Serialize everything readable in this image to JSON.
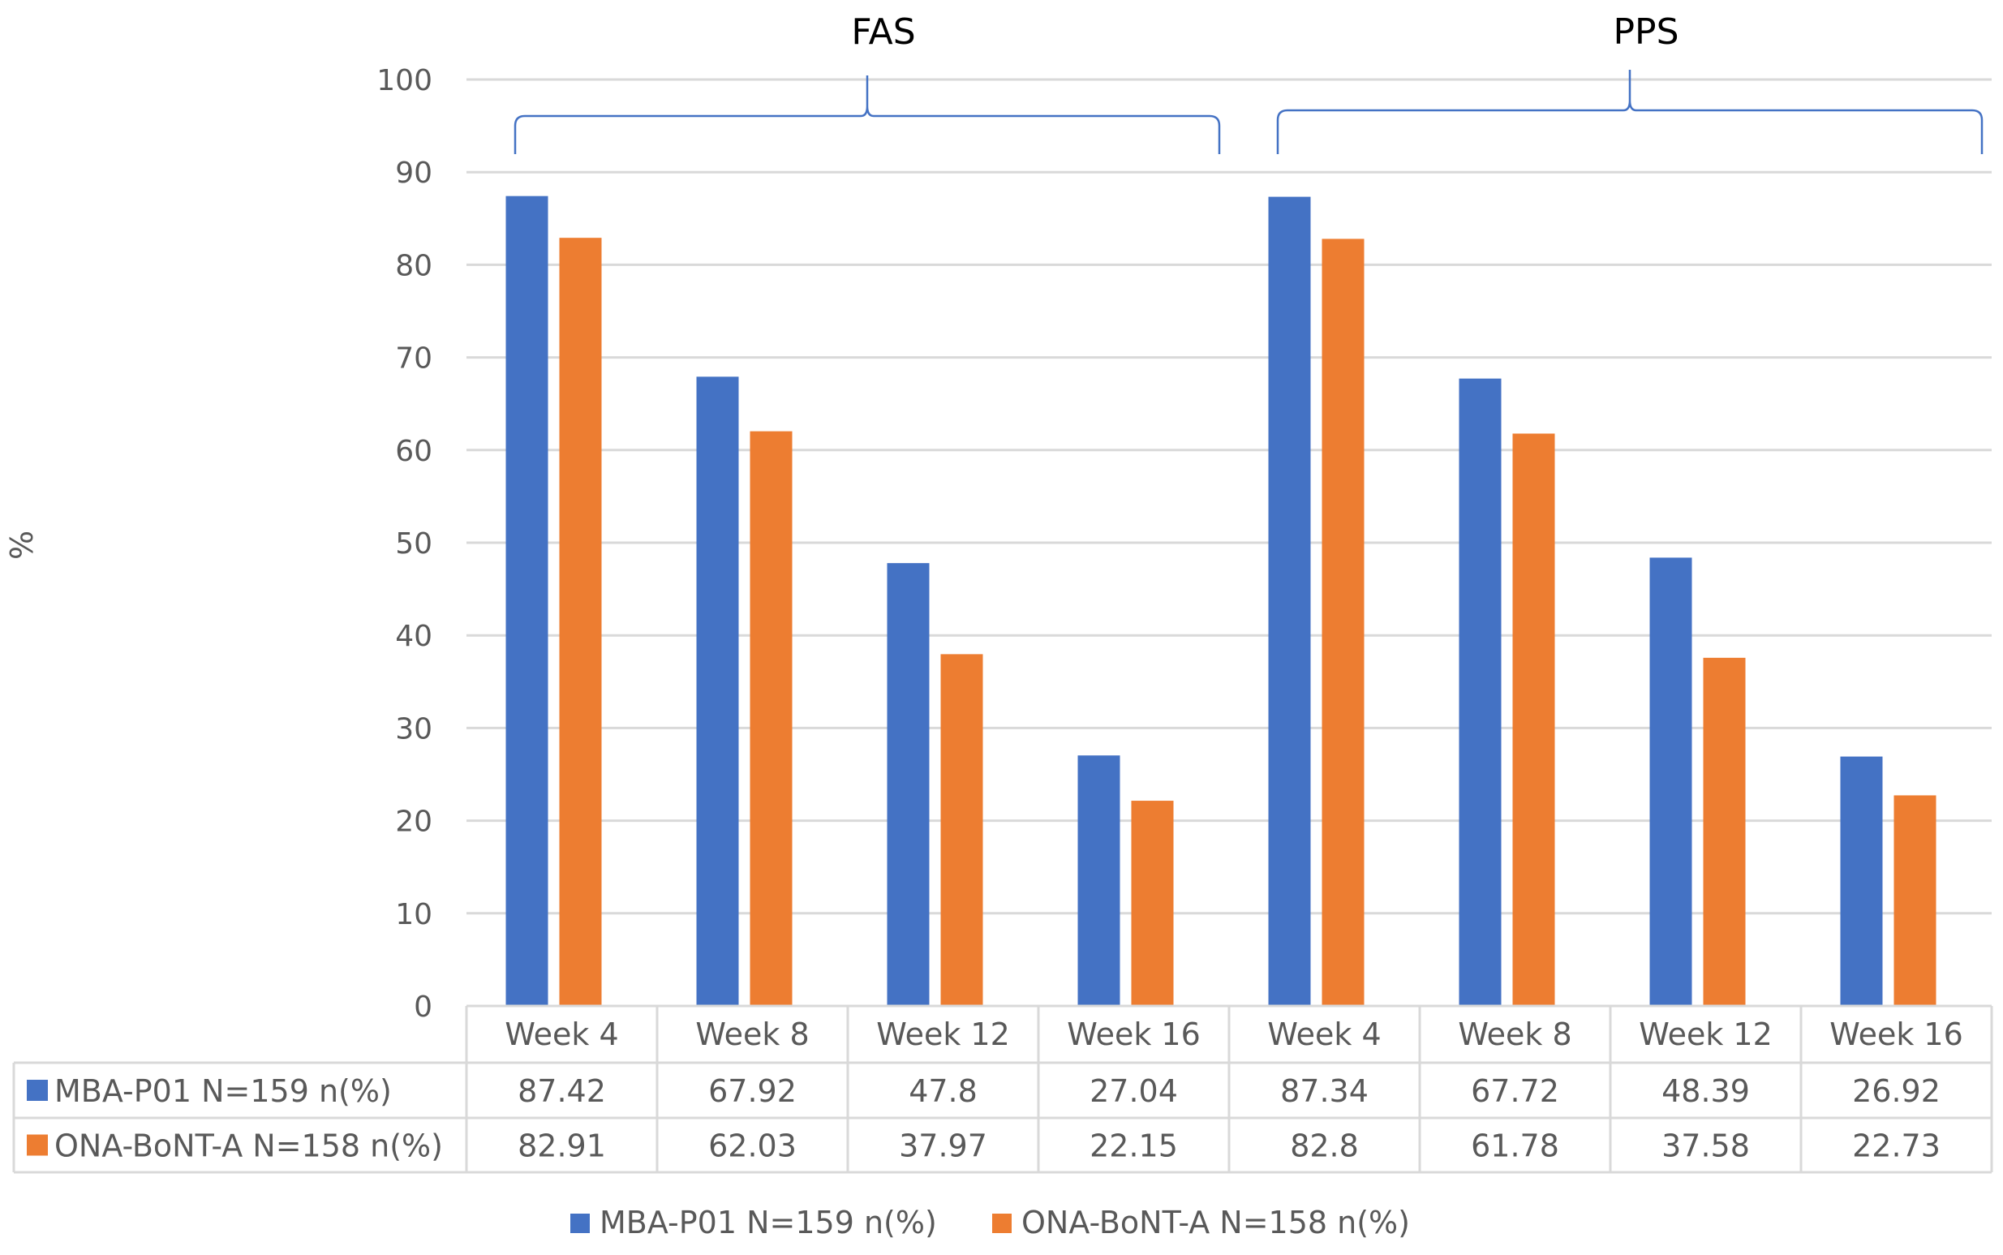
{
  "chart_data": {
    "type": "bar",
    "title": "",
    "xlabel": "",
    "ylabel": "%",
    "ylim": [
      0,
      100
    ],
    "yticks": [
      "0",
      "10",
      "20",
      "30",
      "40",
      "50",
      "60",
      "70",
      "80",
      "90",
      "100"
    ],
    "grid": true,
    "groups": [
      {
        "label": "FAS",
        "span": [
          0,
          3
        ]
      },
      {
        "label": "PPS",
        "span": [
          4,
          7
        ]
      }
    ],
    "categories": [
      "Week 4",
      "Week 8",
      "Week 12",
      "Week 16",
      "Week 4",
      "Week 8",
      "Week 12",
      "Week 16"
    ],
    "series": [
      {
        "name": "MBA-P01  N=159  n(%)",
        "color": "#4472C4",
        "values": [
          87.42,
          67.92,
          47.8,
          27.04,
          87.34,
          67.72,
          48.39,
          26.92
        ],
        "labels": [
          "87.42",
          "67.92",
          "47.8",
          "27.04",
          "87.34",
          "67.72",
          "48.39",
          "26.92"
        ]
      },
      {
        "name": "ONA-BoNT-A   N=158  n(%)",
        "color": "#ED7D31",
        "values": [
          82.91,
          62.03,
          37.97,
          22.15,
          82.8,
          61.78,
          37.58,
          22.73
        ],
        "labels": [
          "82.91",
          "62.03",
          "37.97",
          "22.15",
          "82.8",
          "61.78",
          "37.58",
          "22.73"
        ]
      }
    ],
    "legend_position": "bottom",
    "data_table": true
  }
}
